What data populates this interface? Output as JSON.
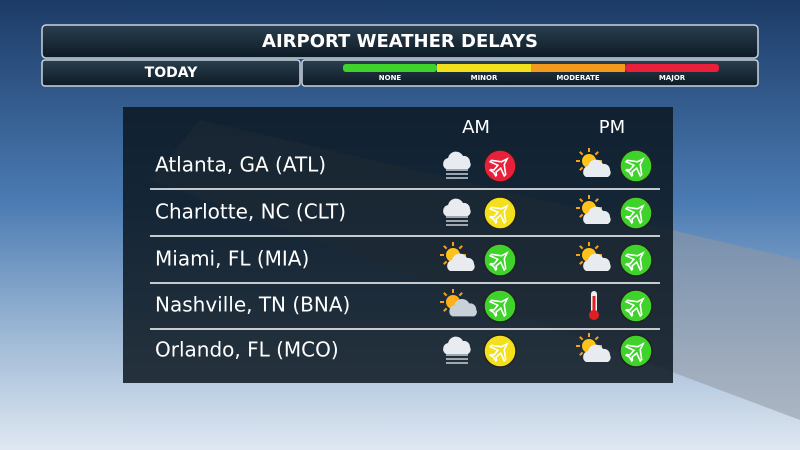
{
  "header": {
    "title": "AIRPORT WEATHER DELAYS",
    "period": "TODAY"
  },
  "legend": [
    {
      "label": "NONE",
      "color": "#3fd22a"
    },
    {
      "label": "MINOR",
      "color": "#f2e01c"
    },
    {
      "label": "MODERATE",
      "color": "#f39a1c"
    },
    {
      "label": "MAJOR",
      "color": "#e8203a"
    }
  ],
  "columns": [
    "AM",
    "PM"
  ],
  "rows": [
    {
      "airport": "Atlanta, GA (ATL)",
      "am": {
        "icon": "fog",
        "delay_color": "#e8203a"
      },
      "pm": {
        "icon": "partly-cloudy",
        "delay_color": "#3fd22a"
      }
    },
    {
      "airport": "Charlotte, NC (CLT)",
      "am": {
        "icon": "fog",
        "delay_color": "#f2e01c"
      },
      "pm": {
        "icon": "partly-cloudy",
        "delay_color": "#3fd22a"
      }
    },
    {
      "airport": "Miami, FL (MIA)",
      "am": {
        "icon": "partly-cloudy",
        "delay_color": "#3fd22a"
      },
      "pm": {
        "icon": "partly-cloudy",
        "delay_color": "#3fd22a"
      }
    },
    {
      "airport": "Nashville, TN (BNA)",
      "am": {
        "icon": "hazy-sun",
        "delay_color": "#3fd22a"
      },
      "pm": {
        "icon": "hot",
        "delay_color": "#3fd22a"
      }
    },
    {
      "airport": "Orlando, FL (MCO)",
      "am": {
        "icon": "fog",
        "delay_color": "#f2e01c"
      },
      "pm": {
        "icon": "partly-cloudy",
        "delay_color": "#3fd22a"
      }
    }
  ]
}
